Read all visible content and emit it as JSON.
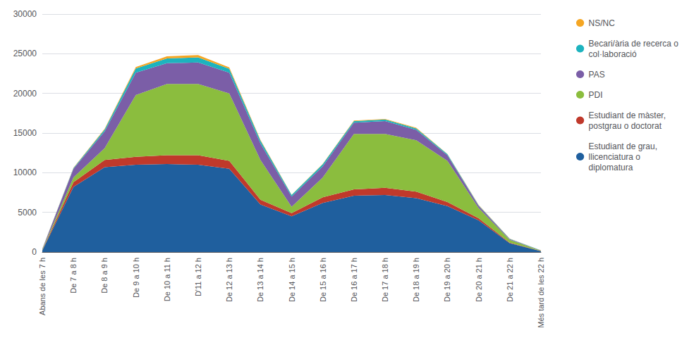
{
  "chart_data": {
    "type": "area",
    "stacked": true,
    "categories": [
      "Abans de les 7 h",
      "De 7 a 8 h",
      "De 8 a 9 h",
      "De 9 a 10 h",
      "De 10 a 11 h",
      "D'11 a 12 h",
      "De 12 a 13 h",
      "De 13 a 14 h",
      "De 14 a 15 h",
      "De 15 a 16 h",
      "De 16 a 17 h",
      "De 17 a 18 h",
      "De 18 a 19 h",
      "De 19 a 20 h",
      "De 20 a 21 h",
      "De 21 a 22 h",
      "Més tard de les 22 h"
    ],
    "series": [
      {
        "name": "Estudiant de grau,\nllicenciatura o\ndiplomatura",
        "color": "#1F5F9E",
        "values": [
          200,
          8200,
          10700,
          11000,
          11100,
          11000,
          10500,
          6000,
          4500,
          6200,
          7100,
          7200,
          6800,
          5800,
          4000,
          1100,
          120
        ]
      },
      {
        "name": "Estudiant de màster,\npostgrau o doctorat",
        "color": "#C0392B",
        "values": [
          50,
          600,
          900,
          1000,
          1100,
          1200,
          1000,
          600,
          400,
          700,
          800,
          900,
          800,
          500,
          250,
          80,
          20
        ]
      },
      {
        "name": "PDI",
        "color": "#8BBD3E",
        "values": [
          80,
          600,
          1500,
          7800,
          9000,
          9000,
          8500,
          5000,
          800,
          2500,
          7000,
          6800,
          6500,
          5200,
          1300,
          350,
          40
        ]
      },
      {
        "name": "PAS",
        "color": "#7B5EA7",
        "values": [
          50,
          1100,
          2100,
          2800,
          2600,
          2700,
          2600,
          2100,
          1300,
          1400,
          1400,
          1600,
          1300,
          700,
          280,
          100,
          15
        ]
      },
      {
        "name": "Becari/ària de recerca o\ncol·laboració",
        "color": "#1DB3BE",
        "values": [
          20,
          80,
          250,
          550,
          600,
          650,
          500,
          350,
          180,
          270,
          200,
          200,
          180,
          130,
          80,
          40,
          8
        ]
      },
      {
        "name": "NS/NC",
        "color": "#F5A623",
        "values": [
          15,
          40,
          80,
          180,
          280,
          280,
          180,
          90,
          40,
          40,
          80,
          80,
          80,
          40,
          40,
          15,
          8
        ]
      }
    ],
    "ylim": [
      0,
      30000
    ],
    "yticks": [
      0,
      5000,
      10000,
      15000,
      20000,
      25000,
      30000
    ],
    "grid": true,
    "legend": "right"
  }
}
